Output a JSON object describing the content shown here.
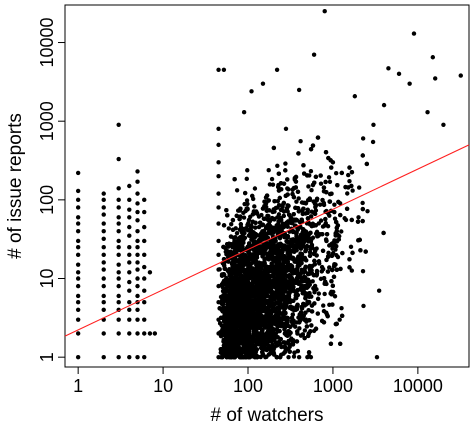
{
  "chart_data": {
    "type": "scatter",
    "title": "",
    "xlabel": "# of watchers",
    "ylabel": "# of issue reports",
    "xscale": "log",
    "yscale": "log",
    "xlim": [
      0.7,
      40000
    ],
    "ylim": [
      0.75,
      30000
    ],
    "xticks": [
      1,
      10,
      100,
      1000,
      10000
    ],
    "xtick_labels": [
      "1",
      "10",
      "100",
      "1000",
      "10000"
    ],
    "yticks": [
      1,
      10,
      100,
      1000,
      10000
    ],
    "ytick_labels": [
      "1",
      "10",
      "100",
      "1000",
      "10000"
    ],
    "grid": false,
    "legend": "none",
    "colors": {
      "points": "#000000",
      "fit_line": "#ff2020",
      "frame": "#000000"
    },
    "fit_line": {
      "x": [
        0.7,
        40000
      ],
      "y": [
        1.85,
        500
      ]
    },
    "series": [
      {
        "values_description_note": "",
        "points": [
          [
            1,
            1
          ],
          [
            1,
            2
          ],
          [
            1,
            3
          ],
          [
            1,
            4
          ],
          [
            1,
            5
          ],
          [
            1,
            6
          ],
          [
            1,
            8
          ],
          [
            1,
            10
          ],
          [
            1,
            12
          ],
          [
            1,
            15
          ],
          [
            1,
            20
          ],
          [
            1,
            25
          ],
          [
            1,
            30
          ],
          [
            1,
            40
          ],
          [
            1,
            50
          ],
          [
            1,
            60
          ],
          [
            1,
            80
          ],
          [
            1,
            100
          ],
          [
            1,
            130
          ],
          [
            1,
            220
          ],
          [
            2,
            1
          ],
          [
            2,
            2
          ],
          [
            2,
            3
          ],
          [
            2,
            4
          ],
          [
            2,
            5
          ],
          [
            2,
            6
          ],
          [
            2,
            8
          ],
          [
            2,
            10
          ],
          [
            2,
            13
          ],
          [
            2,
            16
          ],
          [
            2,
            20
          ],
          [
            2,
            25
          ],
          [
            2,
            32
          ],
          [
            2,
            40
          ],
          [
            2,
            50
          ],
          [
            2,
            65
          ],
          [
            2,
            80
          ],
          [
            2,
            100
          ],
          [
            2,
            120
          ],
          [
            3,
            1
          ],
          [
            3,
            2
          ],
          [
            3,
            3
          ],
          [
            3,
            4
          ],
          [
            3,
            5
          ],
          [
            3,
            6
          ],
          [
            3,
            8
          ],
          [
            3,
            10
          ],
          [
            3,
            12
          ],
          [
            3,
            15
          ],
          [
            3,
            20
          ],
          [
            3,
            25
          ],
          [
            3,
            30
          ],
          [
            3,
            40
          ],
          [
            3,
            50
          ],
          [
            3,
            60
          ],
          [
            3,
            80
          ],
          [
            3,
            100
          ],
          [
            3,
            140
          ],
          [
            3,
            330
          ],
          [
            3,
            900
          ],
          [
            4,
            1
          ],
          [
            4,
            2
          ],
          [
            4,
            3
          ],
          [
            4,
            4
          ],
          [
            4,
            5
          ],
          [
            4,
            7
          ],
          [
            4,
            9
          ],
          [
            4,
            12
          ],
          [
            4,
            16
          ],
          [
            4,
            20
          ],
          [
            4,
            25
          ],
          [
            4,
            35
          ],
          [
            4,
            45
          ],
          [
            4,
            60
          ],
          [
            4,
            75
          ],
          [
            4,
            100
          ],
          [
            4,
            150
          ],
          [
            5,
            1
          ],
          [
            5,
            2
          ],
          [
            5,
            3
          ],
          [
            5,
            4
          ],
          [
            5,
            5
          ],
          [
            5,
            6
          ],
          [
            5,
            8
          ],
          [
            5,
            10
          ],
          [
            5,
            13
          ],
          [
            5,
            16
          ],
          [
            5,
            20
          ],
          [
            5,
            25
          ],
          [
            5,
            30
          ],
          [
            5,
            40
          ],
          [
            5,
            55
          ],
          [
            5,
            70
          ],
          [
            5,
            90
          ],
          [
            5,
            120
          ],
          [
            5,
            170
          ],
          [
            5,
            230
          ],
          [
            6,
            1
          ],
          [
            6,
            2
          ],
          [
            6,
            3
          ],
          [
            6,
            5
          ],
          [
            6,
            7
          ],
          [
            6,
            10
          ],
          [
            6,
            14
          ],
          [
            6,
            20
          ],
          [
            6,
            30
          ],
          [
            6,
            45
          ],
          [
            6,
            70
          ],
          [
            6,
            100
          ],
          [
            7,
            12
          ],
          [
            7,
            2
          ],
          [
            8,
            2
          ],
          [
            45,
            1
          ],
          [
            45,
            2
          ],
          [
            45,
            3
          ],
          [
            45,
            5
          ],
          [
            45,
            8
          ],
          [
            45,
            13
          ],
          [
            45,
            20
          ],
          [
            45,
            30
          ],
          [
            45,
            50
          ],
          [
            45,
            80
          ],
          [
            45,
            120
          ],
          [
            45,
            200
          ],
          [
            45,
            300
          ],
          [
            45,
            500
          ],
          [
            45,
            800
          ],
          [
            45,
            4500
          ],
          [
            52,
            4500
          ],
          [
            60,
            1
          ],
          [
            70,
            1
          ],
          [
            90,
            1
          ],
          [
            120,
            1
          ],
          [
            160,
            1
          ],
          [
            220,
            1
          ],
          [
            300,
            1
          ],
          [
            400,
            1
          ],
          [
            500,
            1
          ],
          [
            550,
            1
          ],
          [
            3300,
            1
          ],
          [
            3500,
            7
          ],
          [
            1200,
            3
          ],
          [
            2000,
            60
          ],
          [
            1000,
            300
          ],
          [
            3000,
            900
          ],
          [
            4000,
            1600
          ],
          [
            4500,
            4700
          ],
          [
            6000,
            4000
          ],
          [
            8000,
            3000
          ],
          [
            9000,
            13000
          ],
          [
            13000,
            1300
          ],
          [
            15000,
            6500
          ],
          [
            16000,
            3500
          ],
          [
            20000,
            900
          ],
          [
            32000,
            3800
          ],
          [
            800,
            25000
          ],
          [
            220,
            4500
          ],
          [
            150,
            3000
          ],
          [
            400,
            2500
          ],
          [
            600,
            7000
          ],
          [
            280,
            800
          ],
          [
            90,
            1300
          ],
          [
            110,
            2400
          ]
        ]
      }
    ]
  }
}
